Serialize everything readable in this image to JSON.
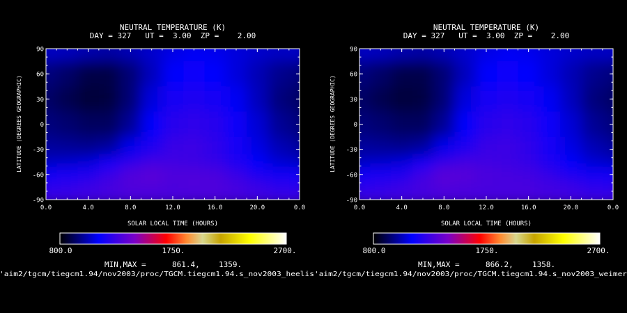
{
  "chart_data": [
    {
      "type": "heatmap",
      "title": "NEUTRAL TEMPERATURE (K)",
      "subtitle": "DAY = 327   UT =  3.00  ZP =    2.00",
      "xlabel": "SOLAR LOCAL TIME (HOURS)",
      "ylabel": "LATITUDE (DEGREES GEOGRAPHIC)",
      "xlim": [
        0.0,
        24.0
      ],
      "ylim": [
        -90,
        90
      ],
      "x_ticks": [
        "0.0",
        "4.0",
        "8.0",
        "12.0",
        "16.0",
        "20.0",
        "0.0"
      ],
      "y_ticks": [
        "90",
        "60",
        "30",
        "0",
        "-30",
        "-60",
        "-90"
      ],
      "colorbar": {
        "min_label": "800.0",
        "mid_label": "1750.",
        "max_label": "2700.",
        "min": 800,
        "max": 2700
      },
      "minmax_label": "MIN,MAX =",
      "min_value": "861.4,",
      "max_value": "1359.",
      "grid_x": [
        0,
        2,
        4,
        6,
        8,
        10,
        12,
        14,
        16,
        18,
        20,
        22,
        24
      ],
      "grid_y": [
        90,
        60,
        30,
        0,
        -30,
        -45,
        -60,
        -75,
        -90
      ],
      "values": [
        [
          1050,
          1040,
          1020,
          1010,
          1030,
          1060,
          1090,
          1110,
          1100,
          1080,
          1060,
          1050,
          1050
        ],
        [
          960,
          930,
          890,
          890,
          950,
          1040,
          1120,
          1150,
          1130,
          1080,
          1030,
          980,
          960
        ],
        [
          930,
          900,
          870,
          880,
          950,
          1080,
          1180,
          1200,
          1180,
          1110,
          1040,
          960,
          930
        ],
        [
          960,
          940,
          920,
          920,
          990,
          1120,
          1220,
          1240,
          1220,
          1150,
          1070,
          990,
          960
        ],
        [
          1000,
          990,
          980,
          1000,
          1100,
          1200,
          1260,
          1270,
          1240,
          1170,
          1090,
          1030,
          1000
        ],
        [
          1050,
          1060,
          1080,
          1140,
          1230,
          1280,
          1280,
          1270,
          1250,
          1190,
          1120,
          1070,
          1050
        ],
        [
          1150,
          1170,
          1200,
          1260,
          1330,
          1350,
          1320,
          1320,
          1310,
          1260,
          1200,
          1160,
          1150
        ],
        [
          1230,
          1250,
          1270,
          1300,
          1320,
          1320,
          1310,
          1320,
          1320,
          1300,
          1270,
          1240,
          1230
        ],
        [
          1270,
          1270,
          1280,
          1290,
          1300,
          1300,
          1300,
          1300,
          1300,
          1290,
          1280,
          1270,
          1270
        ]
      ],
      "file_path": "'aim2/tgcm/tiegcm1.94/nov2003/proc/TGCM.tiegcm1.94.s_nov2003_heelis"
    },
    {
      "type": "heatmap",
      "title": "NEUTRAL TEMPERATURE (K)",
      "subtitle": "DAY = 327   UT =  3.00  ZP =    2.00",
      "xlabel": "SOLAR LOCAL TIME (HOURS)",
      "ylabel": "LATITUDE (DEGREES GEOGRAPHIC)",
      "xlim": [
        0.0,
        24.0
      ],
      "ylim": [
        -90,
        90
      ],
      "x_ticks": [
        "0.0",
        "4.0",
        "8.0",
        "12.0",
        "16.0",
        "20.0",
        "0.0"
      ],
      "y_ticks": [
        "90",
        "60",
        "30",
        "0",
        "-30",
        "-60",
        "-90"
      ],
      "colorbar": {
        "min_label": "800.0",
        "mid_label": "1750.",
        "max_label": "2700.",
        "min": 800,
        "max": 2700
      },
      "minmax_label": "MIN,MAX =",
      "min_value": "866.2,",
      "max_value": "1358.",
      "grid_x": [
        0,
        2,
        4,
        6,
        8,
        10,
        12,
        14,
        16,
        18,
        20,
        22,
        24
      ],
      "grid_y": [
        90,
        60,
        30,
        0,
        -30,
        -45,
        -60,
        -75,
        -90
      ],
      "values": [
        [
          1050,
          1040,
          1020,
          1010,
          1030,
          1060,
          1090,
          1110,
          1100,
          1080,
          1060,
          1050,
          1050
        ],
        [
          960,
          930,
          895,
          895,
          950,
          1040,
          1120,
          1150,
          1130,
          1080,
          1030,
          980,
          960
        ],
        [
          930,
          900,
          875,
          885,
          950,
          1080,
          1180,
          1200,
          1180,
          1110,
          1040,
          960,
          930
        ],
        [
          960,
          940,
          920,
          920,
          990,
          1120,
          1220,
          1240,
          1220,
          1150,
          1070,
          990,
          960
        ],
        [
          1000,
          990,
          980,
          1000,
          1100,
          1200,
          1260,
          1270,
          1240,
          1170,
          1090,
          1030,
          1000
        ],
        [
          1050,
          1060,
          1080,
          1150,
          1250,
          1290,
          1280,
          1270,
          1250,
          1190,
          1120,
          1070,
          1050
        ],
        [
          1150,
          1170,
          1200,
          1280,
          1350,
          1340,
          1310,
          1300,
          1290,
          1250,
          1200,
          1160,
          1150
        ],
        [
          1230,
          1250,
          1270,
          1300,
          1320,
          1310,
          1300,
          1300,
          1300,
          1290,
          1270,
          1240,
          1230
        ],
        [
          1270,
          1270,
          1280,
          1290,
          1300,
          1300,
          1300,
          1300,
          1300,
          1290,
          1280,
          1270,
          1270
        ]
      ],
      "file_path": "'aim2/tgcm/tiegcm1.94/nov2003/proc/TGCM.tiegcm1.94.s_nov2003_weimer"
    }
  ]
}
